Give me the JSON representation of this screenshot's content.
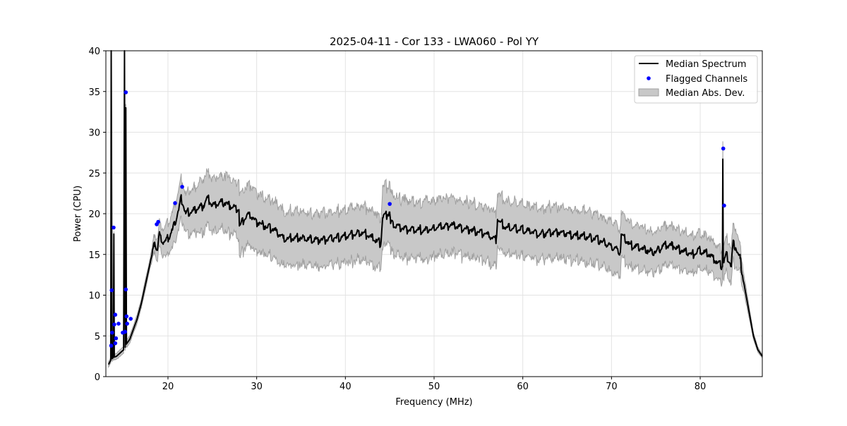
{
  "chart_data": {
    "type": "line",
    "title": "2025-04-11 - Cor 133 - LWA060 - Pol YY",
    "xlabel": "Frequency (MHz)",
    "ylabel": "Power (CPU)",
    "xlim": [
      13,
      87
    ],
    "ylim": [
      0,
      40
    ],
    "xticks": [
      20,
      30,
      40,
      50,
      60,
      70,
      80
    ],
    "yticks": [
      0,
      5,
      10,
      15,
      20,
      25,
      30,
      35,
      40
    ],
    "grid": true,
    "legend_position": "top-right",
    "legend": [
      "Median Spectrum",
      "Flagged Channels",
      "Median Abs. Dev."
    ],
    "colors": {
      "median": "#000000",
      "flagged": "#0000ff",
      "mad": "#c8c8c8",
      "mad_edge": "#a0a0a0"
    },
    "median_spectrum": [
      [
        13.3,
        1.5
      ],
      [
        13.55,
        2.0
      ],
      [
        13.6,
        40
      ],
      [
        13.7,
        2.2
      ],
      [
        13.85,
        2.4
      ],
      [
        13.9,
        17.5
      ],
      [
        13.95,
        2.4
      ],
      [
        14.2,
        2.5
      ],
      [
        14.6,
        2.9
      ],
      [
        15.0,
        3.3
      ],
      [
        15.1,
        40
      ],
      [
        15.18,
        3.6
      ],
      [
        15.25,
        33
      ],
      [
        15.32,
        4.0
      ],
      [
        15.7,
        4.6
      ],
      [
        16,
        5.5
      ],
      [
        16.5,
        7
      ],
      [
        17,
        9
      ],
      [
        17.5,
        11.5
      ],
      [
        18,
        14
      ],
      [
        18.5,
        16.5
      ],
      [
        18.8,
        15.5
      ],
      [
        19,
        17.5
      ],
      [
        19.5,
        16.5
      ],
      [
        20,
        17
      ],
      [
        20.5,
        18
      ],
      [
        21,
        19.5
      ],
      [
        21.5,
        22
      ],
      [
        22,
        20
      ],
      [
        23,
        20.5
      ],
      [
        24,
        21
      ],
      [
        24.5,
        22
      ],
      [
        25,
        21
      ],
      [
        26,
        21.5
      ],
      [
        27,
        21
      ],
      [
        28,
        20.5
      ],
      [
        28.05,
        18.5
      ],
      [
        29,
        20
      ],
      [
        30,
        19
      ],
      [
        31,
        18.5
      ],
      [
        32,
        18
      ],
      [
        33,
        17
      ],
      [
        35,
        17
      ],
      [
        37,
        16.8
      ],
      [
        39,
        17
      ],
      [
        40,
        17.3
      ],
      [
        42,
        17.7
      ],
      [
        44,
        16.3
      ],
      [
        44.2,
        19.5
      ],
      [
        45,
        20.2
      ],
      [
        45.1,
        18.8
      ],
      [
        47,
        18
      ],
      [
        49,
        18
      ],
      [
        50,
        18.2
      ],
      [
        52,
        18.6
      ],
      [
        54,
        18
      ],
      [
        56,
        17.5
      ],
      [
        57,
        16.8
      ],
      [
        57.15,
        19.3
      ],
      [
        58,
        18.3
      ],
      [
        60,
        18
      ],
      [
        62,
        17.5
      ],
      [
        64,
        17.7
      ],
      [
        66,
        17.3
      ],
      [
        68,
        17
      ],
      [
        70,
        16
      ],
      [
        71,
        15.3
      ],
      [
        71.1,
        17.5
      ],
      [
        72,
        16.3
      ],
      [
        74,
        15.5
      ],
      [
        75,
        15.3
      ],
      [
        76,
        16.3
      ],
      [
        77,
        16
      ],
      [
        78,
        15.5
      ],
      [
        79,
        15
      ],
      [
        80,
        15.5
      ],
      [
        81,
        15
      ],
      [
        82,
        14
      ],
      [
        82.5,
        13.5
      ],
      [
        82.55,
        26.7
      ],
      [
        82.6,
        14
      ],
      [
        83,
        15
      ],
      [
        83.5,
        13.5
      ],
      [
        83.7,
        16.5
      ],
      [
        84,
        15.8
      ],
      [
        84.5,
        14.5
      ],
      [
        85,
        11
      ],
      [
        85.5,
        8
      ],
      [
        86,
        5
      ],
      [
        86.5,
        3.3
      ],
      [
        87,
        2.5
      ]
    ],
    "mad_halfwidth": [
      [
        13,
        0.3
      ],
      [
        18,
        0.6
      ],
      [
        19,
        1.5
      ],
      [
        20,
        2
      ],
      [
        22,
        2.5
      ],
      [
        24,
        3.2
      ],
      [
        28,
        3.5
      ],
      [
        28.05,
        3.8
      ],
      [
        35,
        3.2
      ],
      [
        44,
        3.3
      ],
      [
        44.2,
        3.6
      ],
      [
        57,
        3.3
      ],
      [
        57.15,
        3.3
      ],
      [
        71,
        3
      ],
      [
        71.1,
        2.8
      ],
      [
        80,
        2.2
      ],
      [
        82,
        2.0
      ],
      [
        84,
        2.2
      ],
      [
        85,
        1
      ],
      [
        86,
        0.4
      ],
      [
        87,
        0.2
      ]
    ],
    "flagged_channels": [
      [
        13.6,
        3.8
      ],
      [
        13.66,
        10.6
      ],
      [
        13.87,
        18.3
      ],
      [
        13.7,
        5.4
      ],
      [
        13.95,
        6.4
      ],
      [
        14.06,
        7.6
      ],
      [
        14.06,
        4.1
      ],
      [
        14.14,
        4.7
      ],
      [
        14.43,
        6.5
      ],
      [
        14.9,
        5.4
      ],
      [
        15.17,
        5.5
      ],
      [
        15.25,
        34.9
      ],
      [
        15.25,
        10.7
      ],
      [
        15.33,
        7.4
      ],
      [
        15.4,
        6.5
      ],
      [
        15.8,
        7.1
      ],
      [
        18.73,
        18.7
      ],
      [
        18.9,
        19.0
      ],
      [
        20.8,
        21.3
      ],
      [
        21.6,
        23.3
      ],
      [
        45.0,
        21.2
      ],
      [
        82.6,
        28.0
      ],
      [
        82.7,
        21.0
      ]
    ]
  }
}
